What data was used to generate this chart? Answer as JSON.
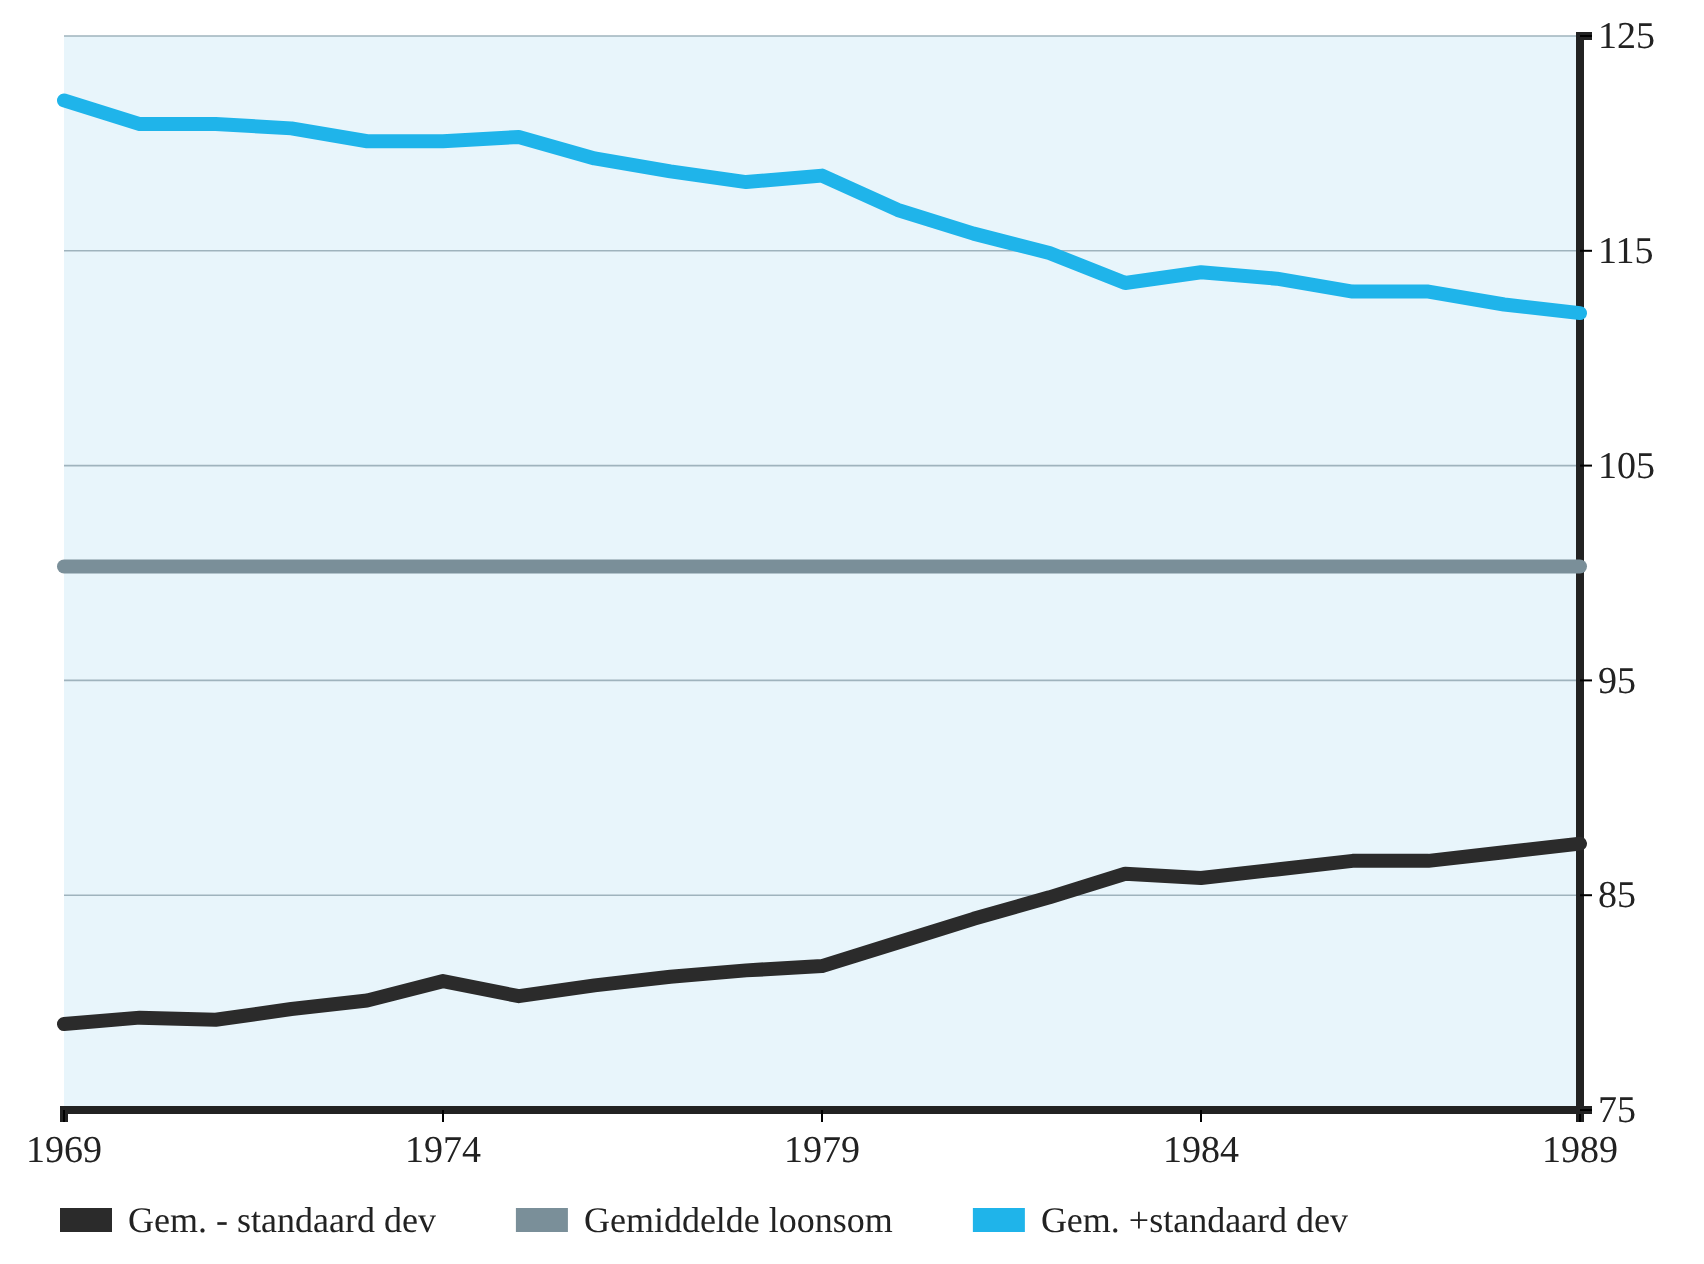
{
  "chart_data": {
    "type": "line",
    "x": [
      1969,
      1970,
      1971,
      1972,
      1973,
      1974,
      1975,
      1976,
      1977,
      1978,
      1979,
      1980,
      1981,
      1982,
      1983,
      1984,
      1985,
      1986,
      1987,
      1988,
      1989
    ],
    "series": [
      {
        "name": "Gem. - standaard dev",
        "color": "#2b2b2b",
        "values": [
          79.0,
          79.3,
          79.2,
          79.7,
          80.1,
          81.0,
          80.3,
          80.8,
          81.2,
          81.5,
          81.7,
          82.8,
          83.9,
          84.9,
          86.0,
          85.8,
          86.2,
          86.6,
          86.6,
          87.0,
          87.4
        ]
      },
      {
        "name": "Gemiddelde loonsom",
        "color": "#7a8f99",
        "values": [
          100.3,
          100.3,
          100.3,
          100.3,
          100.3,
          100.3,
          100.3,
          100.3,
          100.3,
          100.3,
          100.3,
          100.3,
          100.3,
          100.3,
          100.3,
          100.3,
          100.3,
          100.3,
          100.3,
          100.3,
          100.3
        ]
      },
      {
        "name": "Gem. +standaard dev",
        "color": "#1fb4ea",
        "values": [
          122.0,
          120.9,
          120.9,
          120.7,
          120.1,
          120.1,
          120.3,
          119.3,
          118.7,
          118.2,
          118.5,
          116.9,
          115.8,
          114.9,
          113.5,
          114.0,
          113.7,
          113.1,
          113.1,
          112.5,
          112.1
        ]
      }
    ],
    "xlim": [
      1969,
      1989
    ],
    "xticks": [
      1969,
      1974,
      1979,
      1984,
      1989
    ],
    "ylim": [
      75,
      125
    ],
    "yticks": [
      75,
      85,
      95,
      105,
      115,
      125
    ],
    "grid": "y",
    "legend": "bottom",
    "marker": "none",
    "line_style": "solid"
  }
}
